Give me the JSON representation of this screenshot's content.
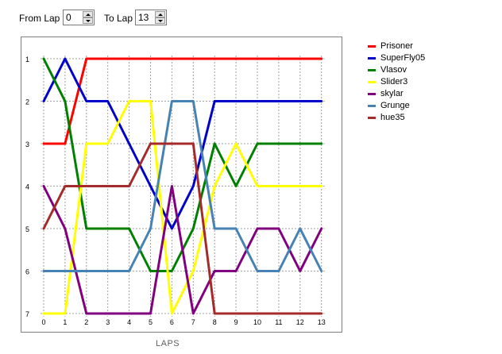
{
  "controls": {
    "from_label": "From Lap",
    "from_value": "0",
    "to_label": "To Lap",
    "to_value": "13"
  },
  "chart_data": {
    "type": "line",
    "title": "",
    "xlabel": "LAPS",
    "ylabel": "",
    "x": [
      0,
      1,
      2,
      3,
      4,
      5,
      6,
      7,
      8,
      9,
      10,
      11,
      12,
      13
    ],
    "x_ticks": [
      "0",
      "1",
      "2",
      "3",
      "4",
      "5",
      "6",
      "7",
      "8",
      "9",
      "10",
      "11",
      "12",
      "13"
    ],
    "y_ticks": [
      "1",
      "2",
      "3",
      "4",
      "5",
      "6",
      "7"
    ],
    "xlim": [
      0,
      13
    ],
    "ylim": [
      1,
      7
    ],
    "y_inverted": true,
    "grid": true,
    "legend_position": "right",
    "series": [
      {
        "name": "Prisoner",
        "color": "#ff0000",
        "values": [
          3,
          3,
          1,
          1,
          1,
          1,
          1,
          1,
          1,
          1,
          1,
          1,
          1,
          1
        ]
      },
      {
        "name": "SuperFly05",
        "color": "#0000cc",
        "values": [
          2,
          1,
          2,
          2,
          3,
          4,
          5,
          4,
          2,
          2,
          2,
          2,
          2,
          2
        ]
      },
      {
        "name": "Vlasov",
        "color": "#008000",
        "values": [
          1,
          2,
          5,
          5,
          5,
          6,
          6,
          5,
          3,
          4,
          3,
          3,
          3,
          3
        ]
      },
      {
        "name": "Slider3",
        "color": "#ffff00",
        "values": [
          7,
          7,
          3,
          3,
          2,
          2,
          7,
          6,
          4,
          3,
          4,
          4,
          4,
          4
        ]
      },
      {
        "name": "skylar",
        "color": "#800080",
        "values": [
          4,
          5,
          7,
          7,
          7,
          7,
          4,
          7,
          6,
          6,
          5,
          5,
          6,
          5
        ]
      },
      {
        "name": "Grunge",
        "color": "#4682b4",
        "values": [
          6,
          6,
          6,
          6,
          6,
          5,
          2,
          2,
          5,
          5,
          6,
          6,
          5,
          6
        ]
      },
      {
        "name": "hue35",
        "color": "#a52a2a",
        "values": [
          5,
          4,
          4,
          4,
          4,
          3,
          3,
          3,
          7,
          7,
          7,
          7,
          7,
          7
        ]
      }
    ]
  }
}
